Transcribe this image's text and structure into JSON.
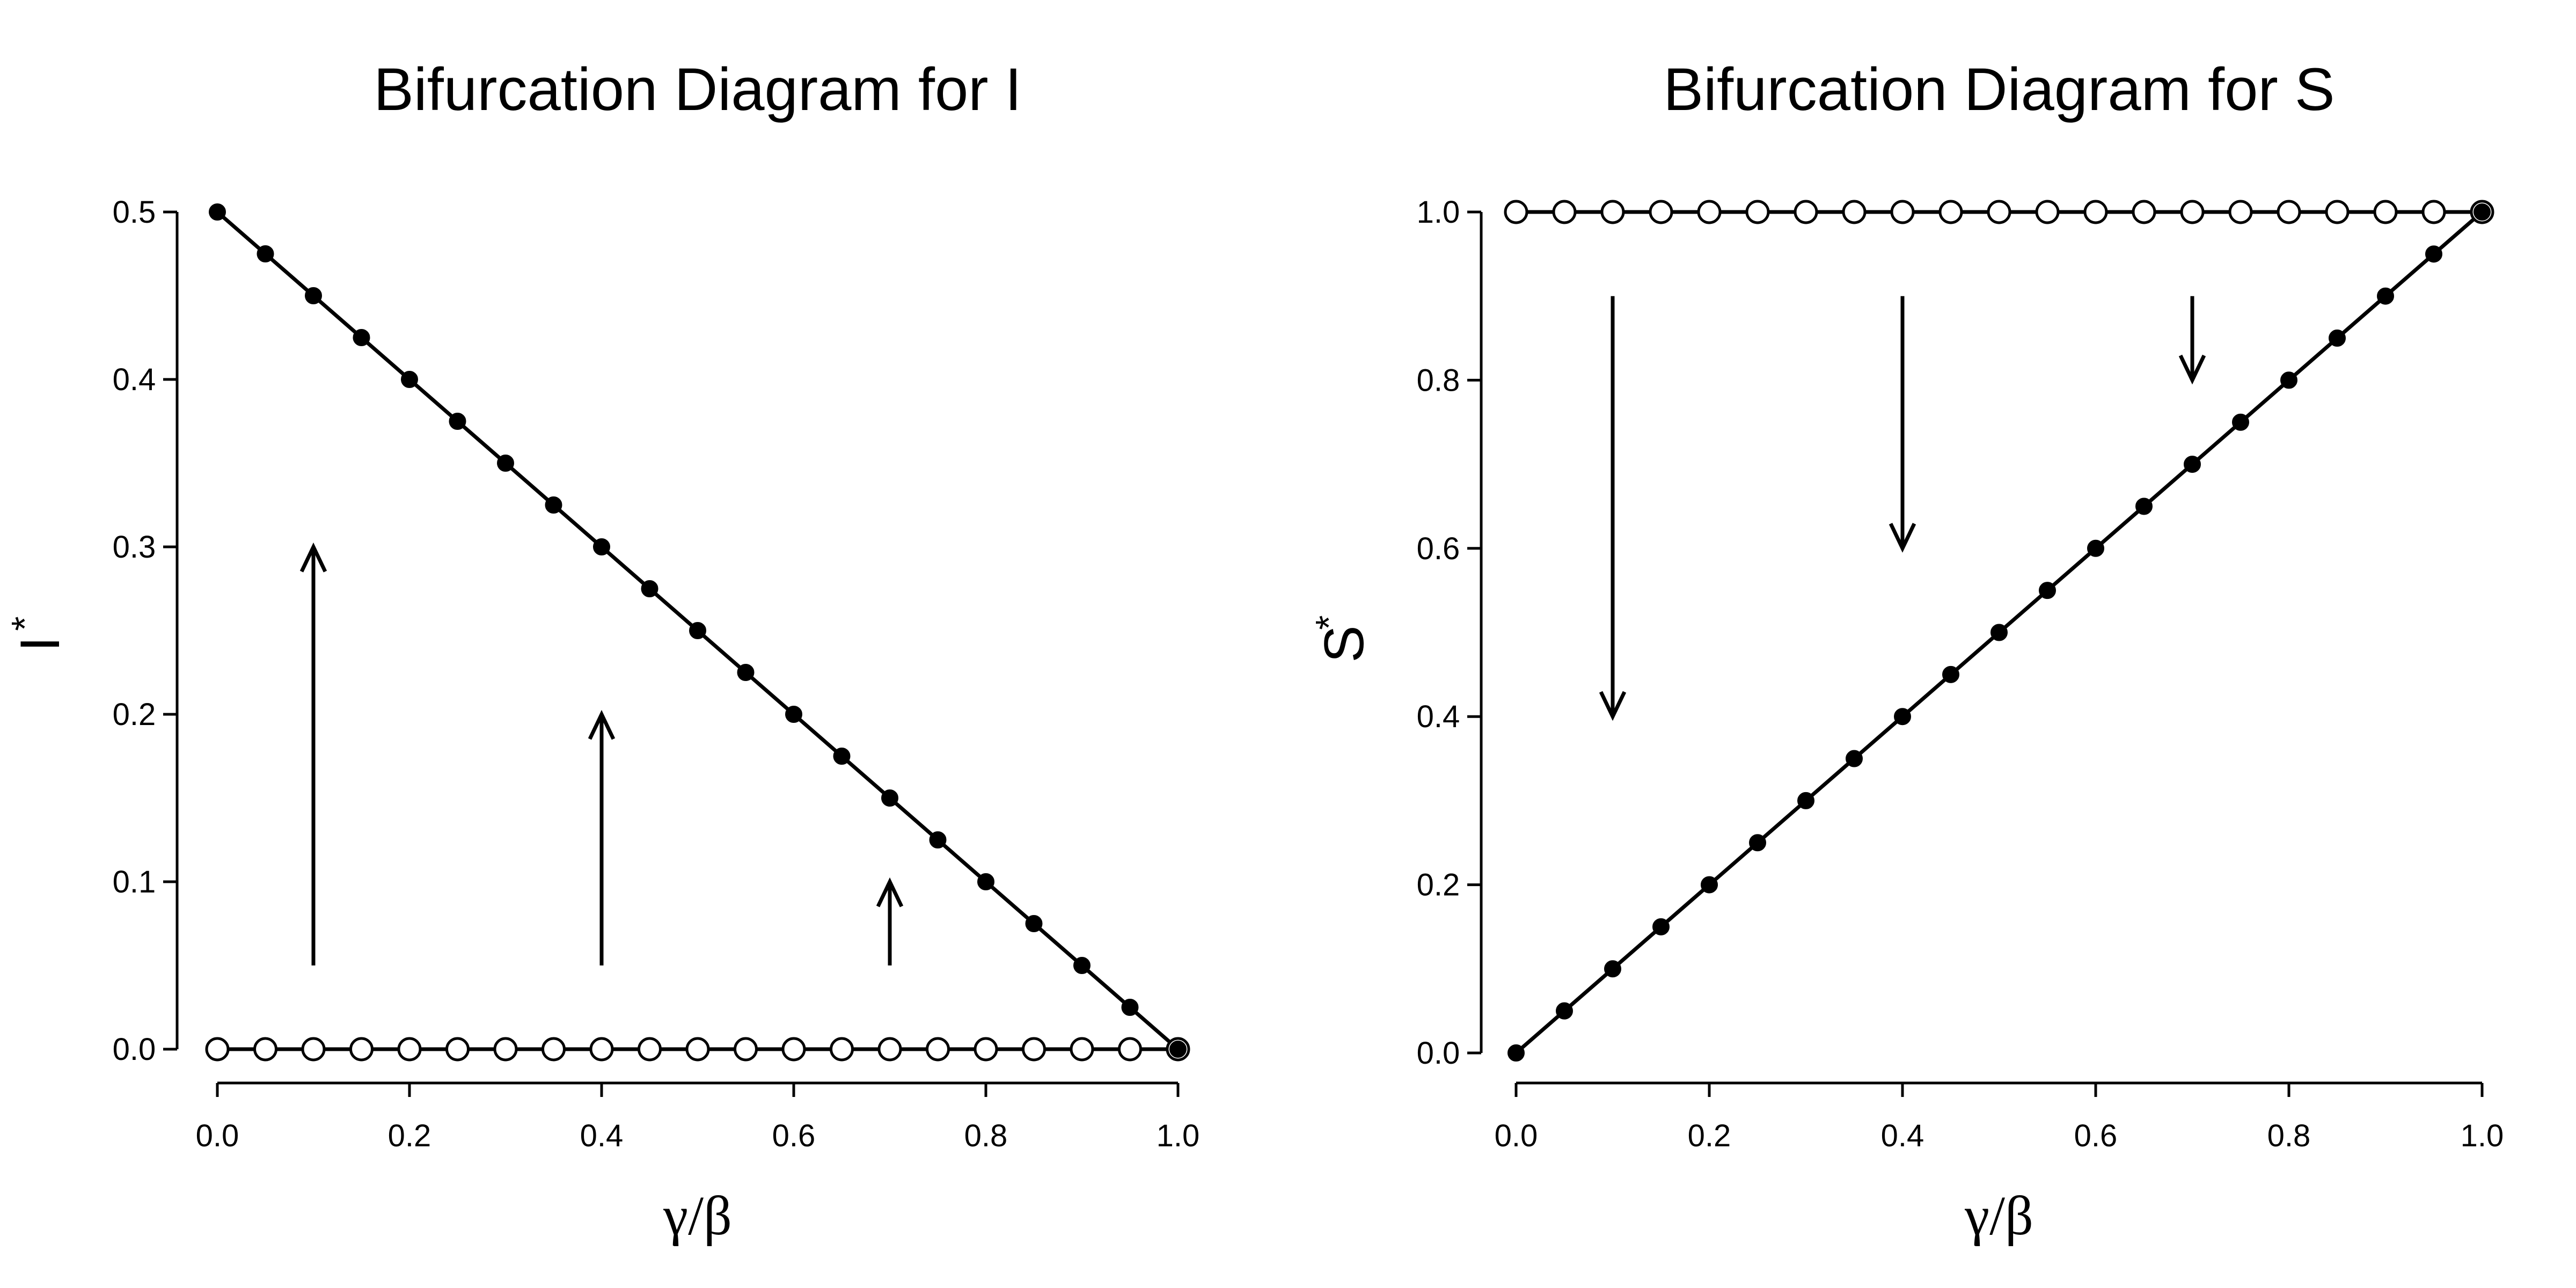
{
  "chart_data": [
    {
      "type": "line",
      "title": "Bifurcation Diagram for I",
      "xlabel": "γ/β",
      "ylabel": "I",
      "ylabel_superscript": "*",
      "xlim": [
        0,
        1
      ],
      "ylim": [
        0,
        0.5
      ],
      "x_ticks": [
        "0.0",
        "0.2",
        "0.4",
        "0.6",
        "0.8",
        "1.0"
      ],
      "y_ticks": [
        "0.0",
        "0.1",
        "0.2",
        "0.3",
        "0.4",
        "0.5"
      ],
      "x": [
        0.0,
        0.05,
        0.1,
        0.15,
        0.2,
        0.25,
        0.3,
        0.35,
        0.4,
        0.45,
        0.5,
        0.55,
        0.6,
        0.65,
        0.7,
        0.75,
        0.8,
        0.85,
        0.9,
        0.95,
        1.0
      ],
      "series": [
        {
          "marker": "filled",
          "values": [
            0.5,
            0.475,
            0.45,
            0.425,
            0.4,
            0.375,
            0.35,
            0.325,
            0.3,
            0.275,
            0.25,
            0.225,
            0.2,
            0.175,
            0.15,
            0.125,
            0.1,
            0.075,
            0.05,
            0.025,
            0.0
          ]
        },
        {
          "marker": "open",
          "values": [
            0,
            0,
            0,
            0,
            0,
            0,
            0,
            0,
            0,
            0,
            0,
            0,
            0,
            0,
            0,
            0,
            0,
            0,
            0,
            0,
            0
          ]
        }
      ],
      "arrows": [
        {
          "x": 0.1,
          "y_from": 0.05,
          "y_to": 0.3
        },
        {
          "x": 0.4,
          "y_from": 0.05,
          "y_to": 0.2
        },
        {
          "x": 0.7,
          "y_from": 0.05,
          "y_to": 0.1
        }
      ],
      "grid": false
    },
    {
      "type": "line",
      "title": "Bifurcation Diagram for S",
      "xlabel": "γ/β",
      "ylabel": "S",
      "ylabel_superscript": "*",
      "xlim": [
        0,
        1
      ],
      "ylim": [
        0,
        1
      ],
      "x_ticks": [
        "0.0",
        "0.2",
        "0.4",
        "0.6",
        "0.8",
        "1.0"
      ],
      "y_ticks": [
        "0.0",
        "0.2",
        "0.4",
        "0.6",
        "0.8",
        "1.0"
      ],
      "x": [
        0.0,
        0.05,
        0.1,
        0.15,
        0.2,
        0.25,
        0.3,
        0.35,
        0.4,
        0.45,
        0.5,
        0.55,
        0.6,
        0.65,
        0.7,
        0.75,
        0.8,
        0.85,
        0.9,
        0.95,
        1.0
      ],
      "series": [
        {
          "marker": "filled",
          "values": [
            0.0,
            0.05,
            0.1,
            0.15,
            0.2,
            0.25,
            0.3,
            0.35,
            0.4,
            0.45,
            0.5,
            0.55,
            0.6,
            0.65,
            0.7,
            0.75,
            0.8,
            0.85,
            0.9,
            0.95,
            1.0
          ]
        },
        {
          "marker": "open",
          "values": [
            1,
            1,
            1,
            1,
            1,
            1,
            1,
            1,
            1,
            1,
            1,
            1,
            1,
            1,
            1,
            1,
            1,
            1,
            1,
            1,
            1
          ]
        }
      ],
      "arrows": [
        {
          "x": 0.1,
          "y_from": 0.9,
          "y_to": 0.4
        },
        {
          "x": 0.4,
          "y_from": 0.9,
          "y_to": 0.6
        },
        {
          "x": 0.7,
          "y_from": 0.9,
          "y_to": 0.8
        }
      ],
      "grid": false
    }
  ]
}
